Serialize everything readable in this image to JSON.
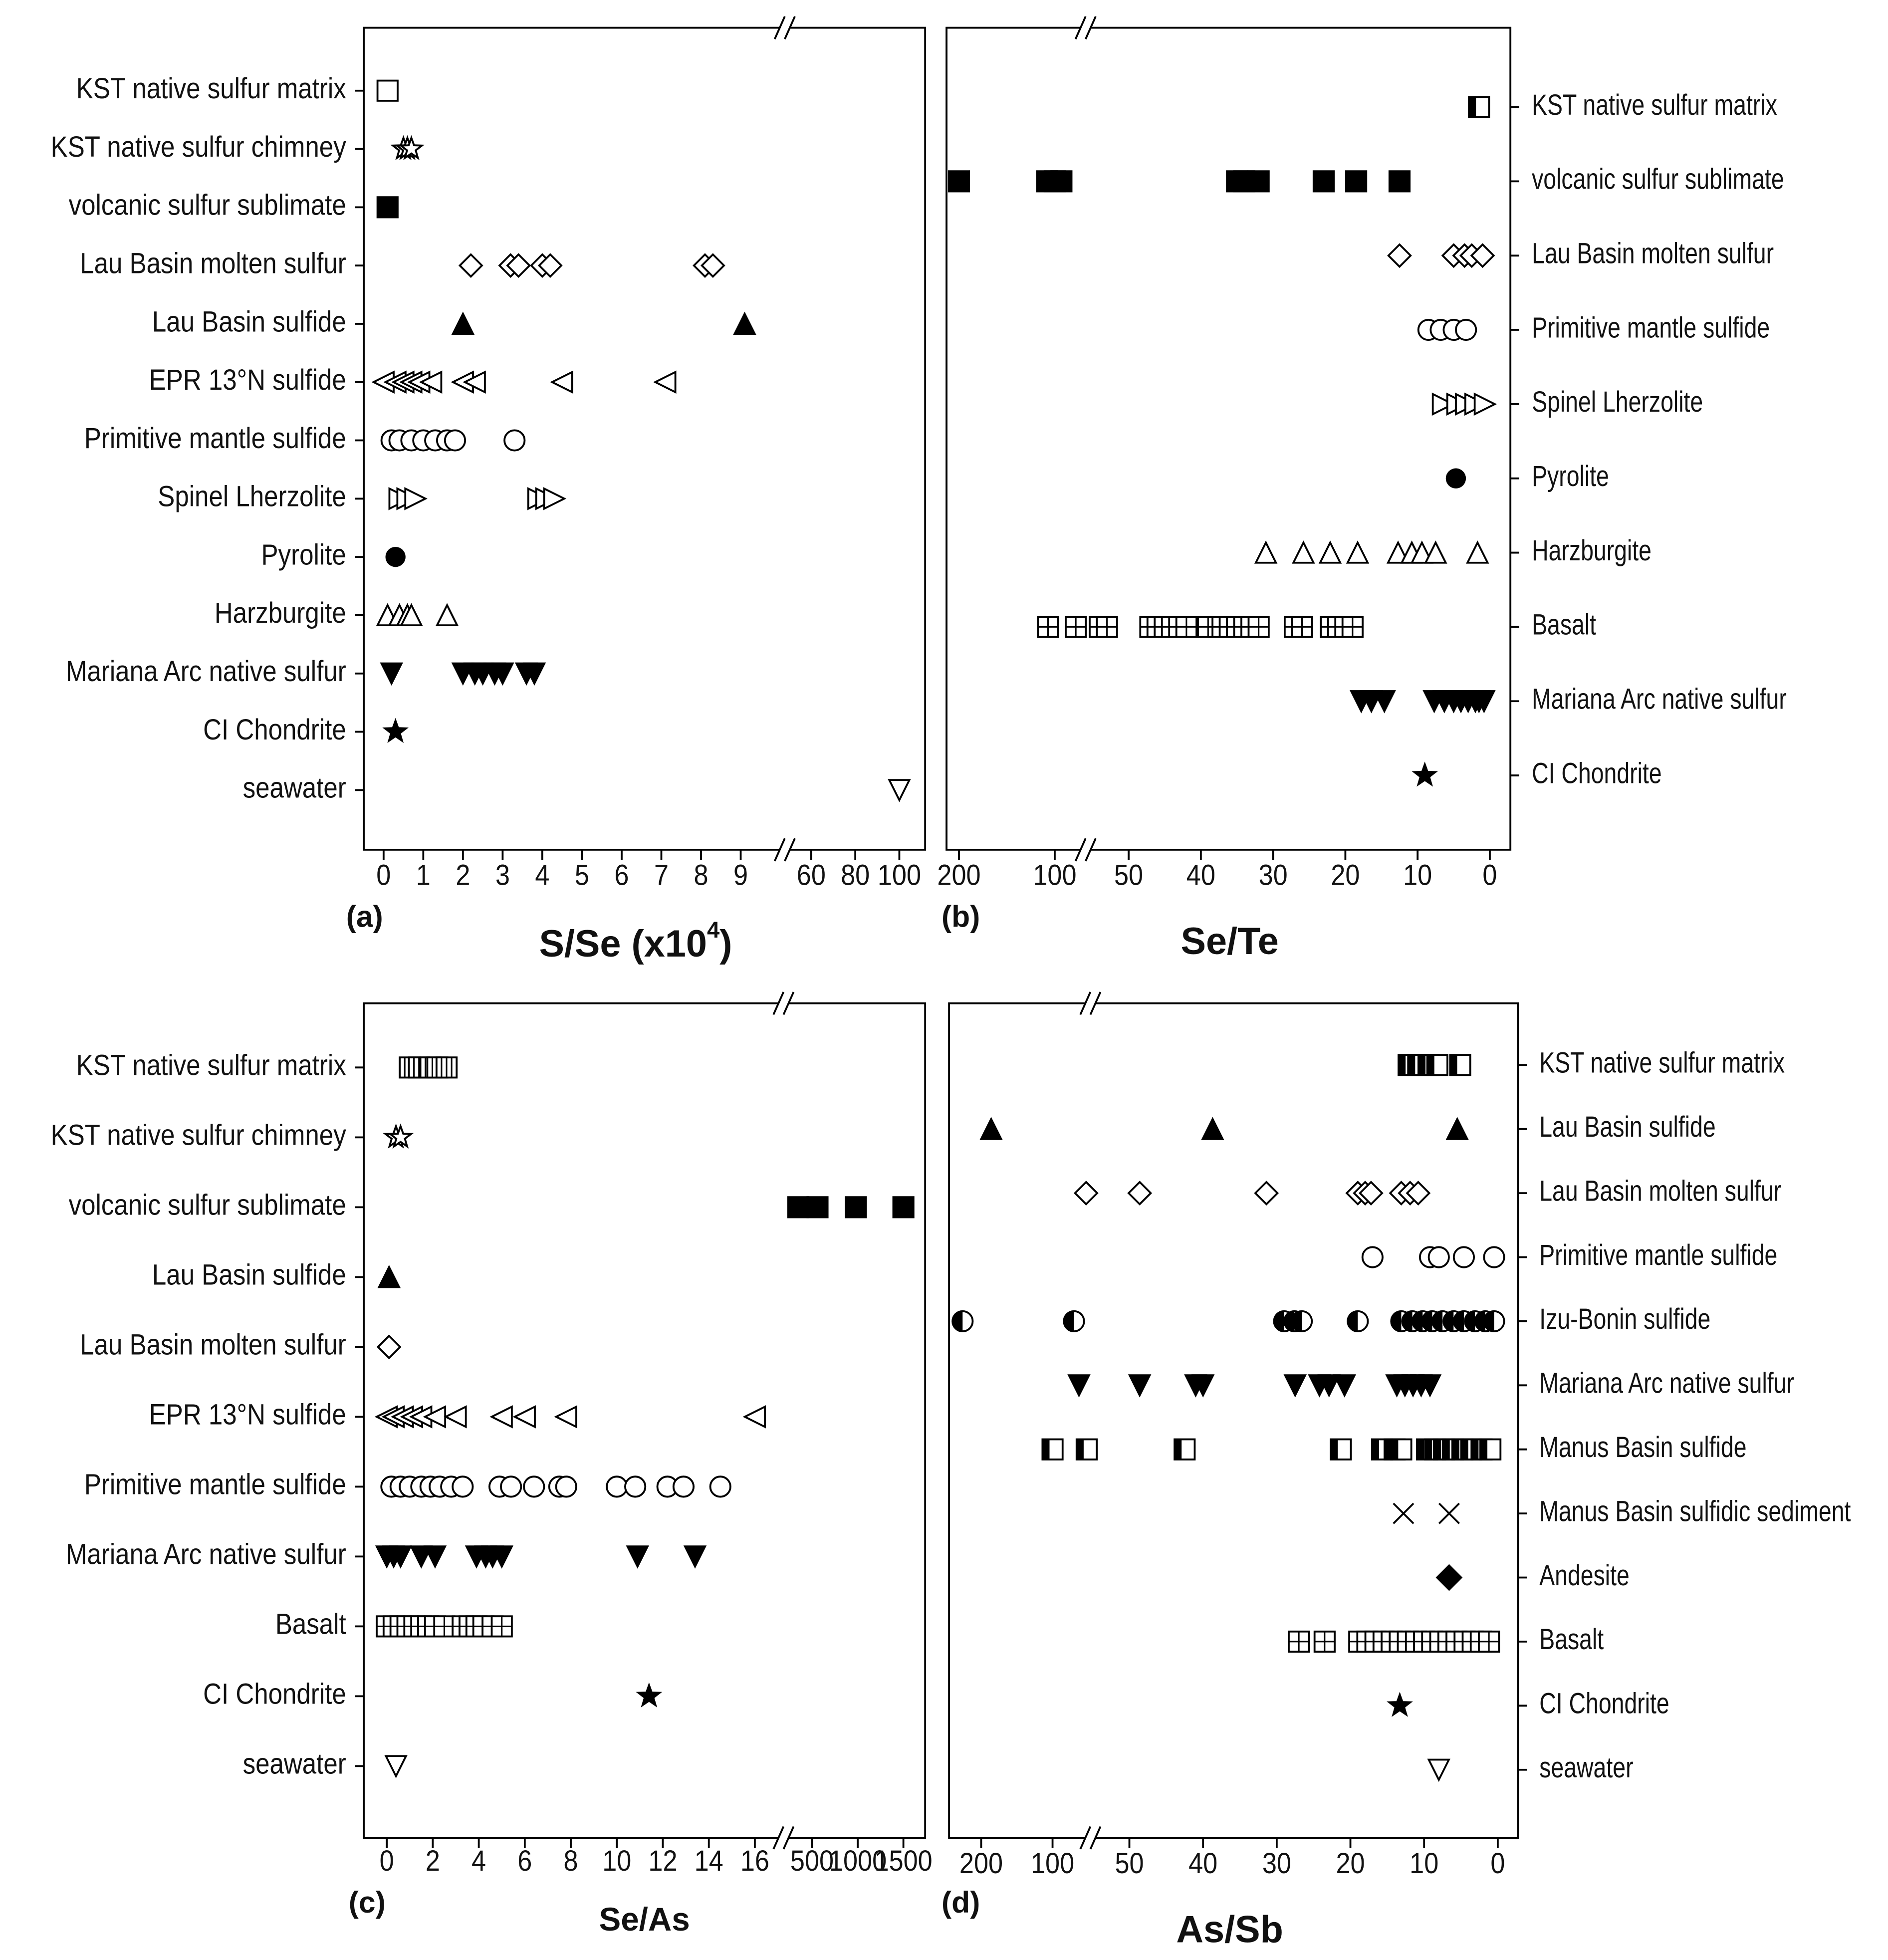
{
  "chart_data": [
    {
      "type": "scatter",
      "panel": "(a)",
      "xlabel": [
        "S/Se (x10",
        "4",
        ")"
      ],
      "categories": [
        "KST native sulfur matrix",
        "KST native sulfur chimney",
        "volcanic sulfur sublimate",
        "Lau Basin molten sulfur",
        "Lau Basin sulfide",
        "EPR 13°N sulfide",
        "Primitive mantle sulfide",
        "Spinel Lherzolite",
        "Pyrolite",
        "Harzburgite",
        "Mariana Arc native sulfur",
        "CI Chondrite",
        "seawater"
      ],
      "markers": [
        "open-square",
        "open-star",
        "filled-square",
        "open-diamond",
        "filled-triangle",
        "open-left",
        "open-circle",
        "open-right",
        "filled-circle",
        "open-triangle",
        "filled-down",
        "filled-star",
        "open-down"
      ],
      "x": [
        [
          0.1
        ],
        [
          0.5,
          0.6,
          0.7
        ],
        [
          0.1
        ],
        [
          2.2,
          3.2,
          3.4,
          4.0,
          4.2,
          8.1,
          8.3
        ],
        [
          2.0,
          9.1
        ],
        [
          0.0,
          0.3,
          0.5,
          0.7,
          0.9,
          1.2,
          2.0,
          2.3,
          4.5,
          7.1
        ],
        [
          0.2,
          0.4,
          0.7,
          1.0,
          1.3,
          1.6,
          1.8,
          3.3
        ],
        [
          0.4,
          0.6,
          0.8,
          3.9,
          4.1,
          4.3
        ],
        [
          0.3
        ],
        [
          0.1,
          0.4,
          0.6,
          0.7,
          1.6
        ],
        [
          0.2,
          2.0,
          2.3,
          2.5,
          2.8,
          3.0,
          3.6,
          3.8
        ],
        [
          0.3
        ],
        [
          100
        ]
      ],
      "xaxis": [
        {
          "xlim": [
            -0.5,
            10
          ],
          "xticks": [
            0,
            1,
            2,
            3,
            4,
            5,
            6,
            7,
            8,
            9
          ]
        },
        {
          "xlim": [
            50,
            110
          ],
          "xticks": [
            60,
            80,
            100
          ]
        }
      ]
    },
    {
      "type": "scatter",
      "panel": "(b)",
      "xlabel": [
        "Se/Te"
      ],
      "categories": [
        "KST native sulfur matrix",
        "volcanic sulfur sublimate",
        "Lau Basin molten sulfur",
        "Primitive mantle sulfide",
        "Spinel Lherzolite",
        "Pyrolite",
        "Harzburgite",
        "Basalt",
        "Mariana Arc native sulfur",
        "CI Chondrite"
      ],
      "markers": [
        "half-square",
        "filled-square",
        "open-diamond",
        "open-circle",
        "open-right",
        "filled-circle",
        "open-triangle",
        "grid-square",
        "filled-down",
        "filled-star"
      ],
      "x": [
        [
          1.5
        ],
        [
          200,
          108,
          100,
          93,
          35,
          34,
          32,
          23,
          18.5,
          12.5
        ],
        [
          12.5,
          5,
          3.5,
          2.5,
          1
        ],
        [
          8.5,
          6.8,
          5,
          3.3
        ],
        [
          6.5,
          4.5,
          3.3,
          2,
          0.7
        ],
        [
          4.7
        ],
        [
          31,
          25.8,
          22.1,
          18.3,
          12.7,
          10.8,
          9.4,
          7.5,
          1.7
        ],
        [
          107,
          78,
          54,
          53,
          47,
          46,
          45,
          44,
          43,
          42,
          39,
          37,
          36,
          35,
          34,
          33,
          32,
          27,
          26,
          22,
          21,
          20,
          19
        ],
        [
          17.8,
          16.4,
          14.6,
          7.7,
          6.3,
          5,
          4,
          3,
          2,
          1.5,
          0.8
        ],
        [
          9
        ]
      ],
      "xaxis": [
        {
          "xlim": [
            213,
            75
          ],
          "xticks": [
            200,
            100
          ]
        },
        {
          "xlim": [
            55,
            -2.5
          ],
          "xticks": [
            50,
            40,
            30,
            20,
            10,
            0
          ]
        }
      ]
    },
    {
      "type": "scatter",
      "panel": "(c)",
      "xlabel": [
        "Se/As"
      ],
      "categories": [
        "KST native sulfur matrix",
        "KST native sulfur chimney",
        "volcanic sulfur sublimate",
        "Lau Basin sulfide",
        "Lau Basin molten sulfur",
        "EPR 13°N sulfide",
        "Primitive mantle sulfide",
        "Mariana Arc native sulfur",
        "Basalt",
        "CI Chondrite",
        "seawater"
      ],
      "markers": [
        "vlines-square",
        "open-star",
        "filled-square",
        "filled-triangle",
        "open-diamond",
        "open-left",
        "open-circle",
        "filled-down",
        "grid-square",
        "filled-star",
        "open-down"
      ],
      "x": [
        [
          1,
          1.4,
          1.9,
          2.2,
          2.6
        ],
        [
          0.4,
          0.6
        ],
        [
          350,
          560,
          980,
          1500
        ],
        [
          0.1
        ],
        [
          0.1
        ],
        [
          0,
          0.3,
          0.7,
          1.1,
          1.5,
          2.1,
          3,
          5,
          6,
          7.8,
          16
        ],
        [
          0.2,
          0.6,
          1,
          1.5,
          1.9,
          2.3,
          2.8,
          3.3,
          4.9,
          5.4,
          6.4,
          7.5,
          7.8,
          10,
          10.8,
          12.2,
          12.9,
          14.5
        ],
        [
          0,
          0.3,
          0.6,
          1.5,
          2.1,
          3.9,
          4.3,
          4.6,
          5,
          10.9,
          13.4
        ],
        [
          0,
          0.3,
          0.6,
          0.9,
          1.2,
          1.5,
          1.8,
          2.1,
          2.5,
          3.3,
          3.6,
          3.9,
          4.2,
          4.6,
          5
        ],
        [
          11.4
        ],
        [
          0.4
        ]
      ],
      "xaxis": [
        {
          "xlim": [
            -1,
            17
          ],
          "xticks": [
            0,
            2,
            4,
            6,
            8,
            10,
            12,
            14,
            16
          ]
        },
        {
          "xlim": [
            250,
            1600
          ],
          "xticks": [
            500,
            1000,
            1500
          ]
        }
      ]
    },
    {
      "type": "scatter",
      "panel": "(d)",
      "xlabel": [
        "As/Sb"
      ],
      "categories": [
        "KST native sulfur matrix",
        "Lau Basin sulfide",
        "Lau Basin molten sulfur",
        "Primitive mantle sulfide",
        "Izu-Bonin sulfide",
        "Mariana Arc native sulfur",
        "Manus Basin sulfide",
        "Manus Basin sulfidic sediment",
        "Andesite",
        "Basalt",
        "CI Chondrite",
        "seawater"
      ],
      "markers": [
        "half-square",
        "filled-triangle",
        "open-diamond",
        "open-circle",
        "half-circle",
        "filled-down",
        "half-square",
        "cross",
        "filled-diamond",
        "grid-square",
        "filled-star",
        "open-down"
      ],
      "x": [
        [
          12.1,
          10.8,
          9.4,
          8.2,
          5.1
        ],
        [
          186,
          38.7,
          5.5
        ],
        [
          53,
          48.6,
          31.4,
          19,
          18,
          17.2,
          13.1,
          11.9,
          10.8
        ],
        [
          17,
          9.2,
          8,
          4.6,
          0.5
        ],
        [
          226,
          70,
          29,
          27.6,
          26.6,
          19,
          13.1,
          11.6,
          10.2,
          8.9,
          7.5,
          6,
          4.6,
          3.1,
          1.7,
          0.5
        ],
        [
          63,
          48.6,
          41,
          40,
          27.5,
          24.2,
          22.9,
          20.8,
          13.7,
          12.6,
          11.5,
          10.4,
          9.2
        ],
        [
          100,
          52.2,
          42.5,
          21.3,
          15.7,
          14,
          13.1,
          9.6,
          8.5,
          7.3,
          6.1,
          4.8,
          3.6,
          2.2,
          1
        ],
        [
          12.8,
          6.6
        ],
        [
          6.6
        ],
        [
          27,
          23.5,
          18.8,
          17.7,
          16.6,
          15.5,
          14.4,
          13.3,
          12.2,
          11.1,
          10,
          8.9,
          7.8,
          6.7,
          5.6,
          4.5,
          3.4,
          2.3,
          1.2
        ],
        [
          13.3
        ],
        [
          8
        ]
      ],
      "xaxis": [
        {
          "xlim": [
            245,
            50
          ],
          "xticks": [
            200,
            100
          ]
        },
        {
          "xlim": [
            55,
            -2.5
          ],
          "xticks": [
            50,
            40,
            30,
            20,
            10,
            0
          ]
        }
      ]
    }
  ]
}
